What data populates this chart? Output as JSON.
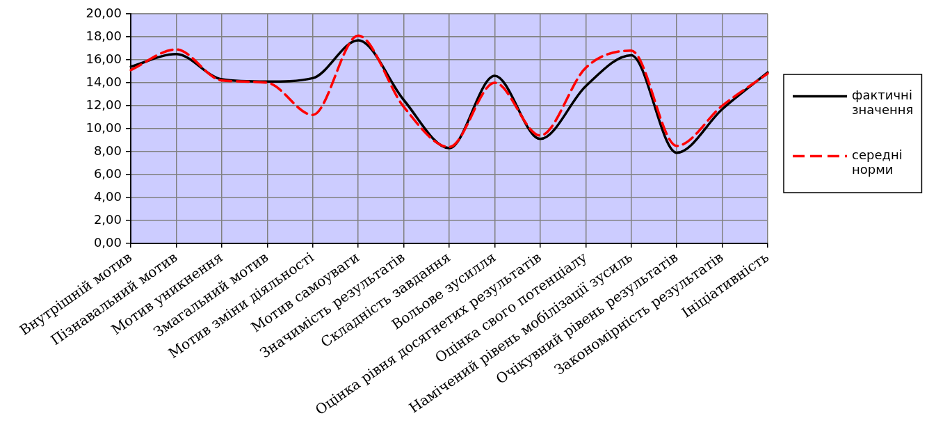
{
  "chart_data": {
    "type": "line",
    "categories": [
      "Внутрішній мотив",
      "Пізнавальний мотив",
      "Мотив уникнення",
      "Змагальний мотив",
      "Мотив зміни діяльності",
      "Мотив самоуваги",
      "Значимість результатів",
      "Складність завдання",
      "Вольове зусилля",
      "Оцінка рівня досягнетих результатів",
      "Оцінка свого потенціалу",
      "Намічений рівень мобілізації зусиль",
      "Очікувний рівень результатів",
      "Закономірність результатів",
      "Ініціативність"
    ],
    "series": [
      {
        "name": "фактичні значення",
        "color": "#000000",
        "line_style": "solid",
        "values": [
          15.4,
          16.5,
          14.3,
          14.1,
          14.4,
          17.7,
          12.5,
          8.3,
          14.6,
          9.1,
          13.7,
          16.4,
          7.9,
          11.7,
          14.9
        ]
      },
      {
        "name": "середні норми",
        "color": "#ff0000",
        "line_style": "dashed",
        "values": [
          15.1,
          16.9,
          14.2,
          14.0,
          11.2,
          18.1,
          11.9,
          8.4,
          14.0,
          9.4,
          15.3,
          16.8,
          8.5,
          12.0,
          14.8
        ]
      }
    ],
    "ylim": [
      0,
      20
    ],
    "yticks": [
      {
        "value": 0,
        "label": "0,00"
      },
      {
        "value": 2,
        "label": "2,00"
      },
      {
        "value": 4,
        "label": "4,00"
      },
      {
        "value": 6,
        "label": "6,00"
      },
      {
        "value": 8,
        "label": "8,00"
      },
      {
        "value": 10,
        "label": "10,00"
      },
      {
        "value": 12,
        "label": "12,00"
      },
      {
        "value": 14,
        "label": "14,00"
      },
      {
        "value": 16,
        "label": "16,00"
      },
      {
        "value": 18,
        "label": "18,00"
      },
      {
        "value": 20,
        "label": "20,00"
      }
    ],
    "grid": true,
    "legend": "right",
    "marker": "none"
  }
}
